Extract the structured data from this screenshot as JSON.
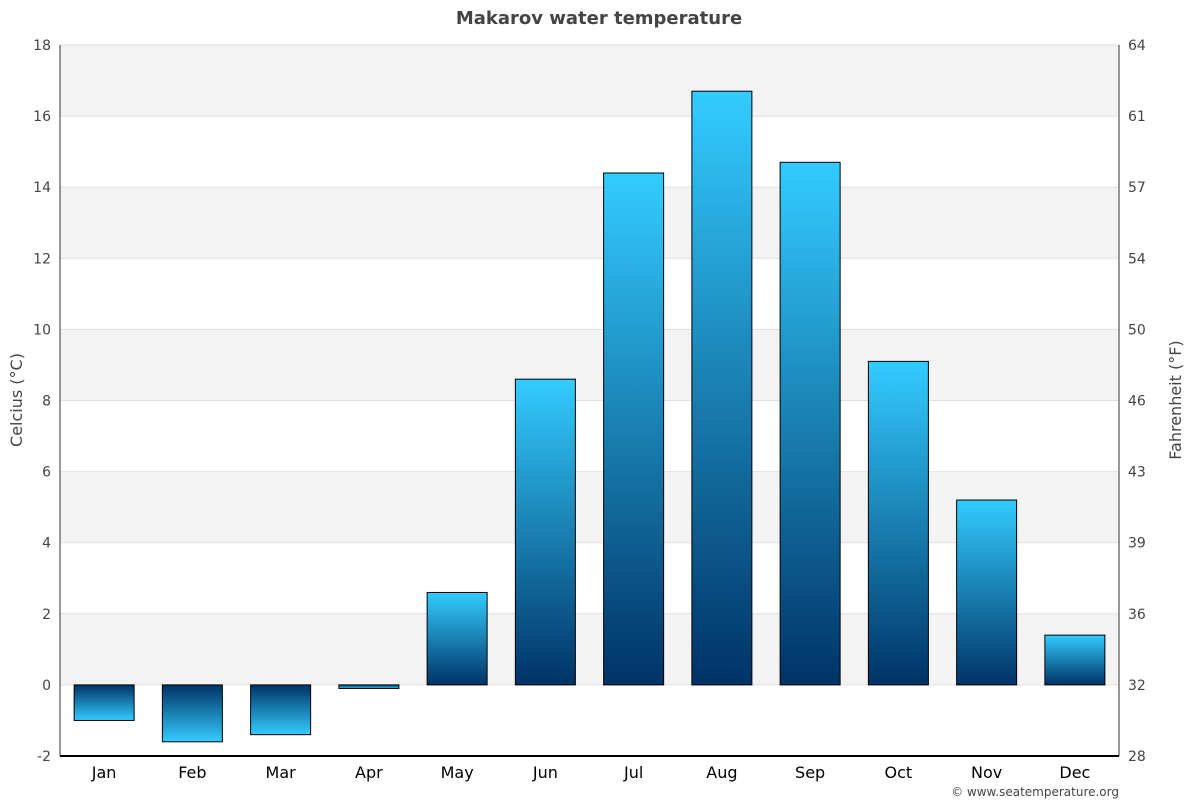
{
  "chart_data": {
    "type": "bar",
    "title": "Makarov water temperature",
    "ylabel": "Celcius (°C)",
    "y2label": "Fahrenheit (°F)",
    "categories": [
      "Jan",
      "Feb",
      "Mar",
      "Apr",
      "May",
      "Jun",
      "Jul",
      "Aug",
      "Sep",
      "Oct",
      "Nov",
      "Dec"
    ],
    "values": [
      -1.0,
      -1.6,
      -1.4,
      -0.1,
      2.6,
      8.6,
      14.4,
      16.7,
      14.7,
      9.1,
      5.2,
      1.4
    ],
    "ylim": [
      -2,
      18
    ],
    "yticks": [
      -2,
      0,
      2,
      4,
      6,
      8,
      10,
      12,
      14,
      16,
      18
    ],
    "y2ticks": [
      "28",
      "32",
      "36",
      "39",
      "43",
      "46",
      "50",
      "54",
      "57",
      "61",
      "64"
    ],
    "grid": true,
    "colors": {
      "bar_light": "#33ccff",
      "bar_dark": "#003366",
      "band": "#f3f3f3"
    }
  },
  "credit": "© www.seatemperature.org"
}
